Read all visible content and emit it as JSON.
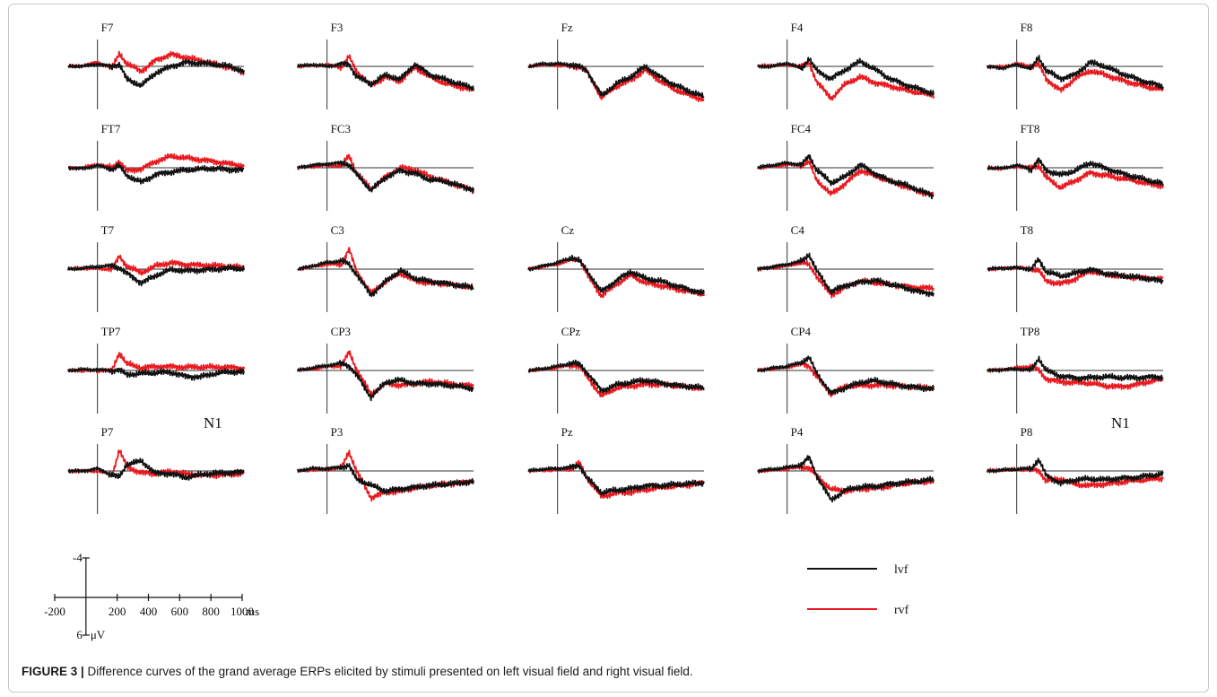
{
  "figure": {
    "caption_label": "FIGURE 3 |",
    "caption_text": " Difference curves of the grand average ERPs elicited by stimuli presented on left visual field and right visual field."
  },
  "chart_data": {
    "type": "line",
    "layout": "electrode grid (5 rows × 5 columns)",
    "x_unit": "ms",
    "y_unit": "μV",
    "xlim": [
      -200,
      1000
    ],
    "ylim": [
      -4,
      6
    ],
    "negative_up": true,
    "grid": false,
    "legend_position": "bottom-right",
    "scale_bar": {
      "x_ticks": [
        "-200",
        "200",
        "400",
        "600",
        "800",
        "1000"
      ],
      "x_unit": "ms",
      "y_top": "-4",
      "y_bottom": "6",
      "y_unit": "μV"
    },
    "annotations": [
      {
        "text": "N1",
        "panel": "TP7"
      },
      {
        "text": "N1",
        "panel": "TP8"
      }
    ],
    "x": [
      -200,
      -100,
      0,
      100,
      150,
      200,
      300,
      400,
      500,
      600,
      700,
      800,
      900,
      1000
    ],
    "series": [
      {
        "name": "lvf",
        "color": "#111111"
      },
      {
        "name": "rvf",
        "color": "#e8191f"
      }
    ],
    "panels": [
      {
        "label": "F7",
        "row": 0,
        "col": 0,
        "lvf": [
          0,
          0,
          -0.3,
          0,
          -0.3,
          1.6,
          2.4,
          0.8,
          0,
          -0.5,
          -0.4,
          -0.2,
          0,
          0.6
        ],
        "rvf": [
          0,
          -0.1,
          -0.5,
          0.2,
          -1.6,
          -0.3,
          0.6,
          -0.8,
          -1.5,
          -1.1,
          -0.7,
          -0.3,
          0.1,
          0.7
        ]
      },
      {
        "label": "F3",
        "row": 0,
        "col": 1,
        "lvf": [
          0,
          -0.2,
          0,
          -0.3,
          -0.3,
          1.2,
          2.2,
          1.1,
          1.6,
          -0.3,
          1.0,
          1.6,
          2.2,
          2.7
        ],
        "rvf": [
          0,
          -0.1,
          -0.2,
          0.1,
          -1.2,
          0.6,
          2.4,
          1.3,
          1.8,
          0.1,
          1.3,
          2.1,
          2.5,
          2.9
        ]
      },
      {
        "label": "Fz",
        "row": 0,
        "col": 2,
        "lvf": [
          0,
          -0.3,
          -0.3,
          -0.2,
          0,
          0.5,
          3.6,
          2.2,
          1.3,
          0,
          1.3,
          2.3,
          3.1,
          3.8
        ],
        "rvf": [
          0,
          -0.2,
          -0.2,
          0,
          0,
          0.6,
          3.9,
          2.5,
          1.7,
          0.4,
          1.8,
          2.9,
          3.6,
          4.1
        ]
      },
      {
        "label": "F4",
        "row": 0,
        "col": 3,
        "lvf": [
          0,
          0,
          -0.4,
          0.3,
          -1.0,
          0.5,
          1.5,
          0.4,
          -0.6,
          0.4,
          1.5,
          2.2,
          2.8,
          3.4
        ],
        "rvf": [
          0,
          -0.1,
          -0.2,
          0,
          -0.5,
          1.8,
          4.0,
          2.2,
          1.3,
          2.0,
          2.4,
          2.9,
          3.3,
          3.6
        ]
      },
      {
        "label": "F8",
        "row": 0,
        "col": 4,
        "lvf": [
          0,
          0.2,
          -0.2,
          0.3,
          -1.1,
          0.5,
          1.5,
          1.0,
          -0.5,
          0,
          0.8,
          1.4,
          2.0,
          2.5
        ],
        "rvf": [
          0,
          0.1,
          -0.3,
          0,
          -0.3,
          1.5,
          3.0,
          1.5,
          0.6,
          1.0,
          1.6,
          2.1,
          2.6,
          2.9
        ]
      },
      {
        "label": "FT7",
        "row": 1,
        "col": 0,
        "lvf": [
          0,
          0.1,
          -0.3,
          0.2,
          -0.2,
          1.0,
          1.8,
          0.8,
          0.5,
          0.3,
          0.2,
          0.1,
          0.2,
          0.3
        ],
        "rvf": [
          0,
          0,
          -0.4,
          0,
          -0.8,
          0.4,
          0.1,
          -0.8,
          -1.4,
          -1.2,
          -1.0,
          -0.8,
          -0.5,
          -0.2
        ]
      },
      {
        "label": "FC3",
        "row": 1,
        "col": 1,
        "lvf": [
          0,
          -0.3,
          -0.5,
          -0.6,
          -0.4,
          0.8,
          2.8,
          1.2,
          0.3,
          0.7,
          1.5,
          1.7,
          2.2,
          2.7
        ],
        "rvf": [
          0,
          -0.2,
          -0.3,
          -0.2,
          -1.5,
          0.6,
          2.6,
          1.1,
          0,
          0.3,
          1.1,
          1.6,
          2.2,
          2.8
        ]
      },
      {
        "label": "FC4",
        "row": 1,
        "col": 3,
        "lvf": [
          0,
          -0.3,
          -0.6,
          -0.4,
          -1.5,
          0.2,
          1.9,
          1.1,
          -0.4,
          0.7,
          1.6,
          2.1,
          2.8,
          3.5
        ],
        "rvf": [
          0,
          -0.2,
          -0.4,
          -0.3,
          -0.7,
          1.5,
          3.3,
          1.9,
          0.3,
          1.0,
          1.7,
          2.3,
          2.9,
          3.4
        ]
      },
      {
        "label": "FT8",
        "row": 1,
        "col": 4,
        "lvf": [
          0,
          0.1,
          -0.3,
          0.2,
          -1.0,
          0.3,
          0.9,
          0.4,
          -0.6,
          0,
          0.6,
          1.1,
          1.6,
          2.0
        ],
        "rvf": [
          0,
          0.1,
          -0.2,
          0,
          -0.3,
          1.2,
          2.5,
          1.6,
          0.6,
          0.9,
          1.3,
          1.6,
          2.0,
          2.2
        ]
      },
      {
        "label": "T7",
        "row": 2,
        "col": 0,
        "lvf": [
          0,
          -0.1,
          -0.3,
          -0.4,
          -0.2,
          0.5,
          1.7,
          0.8,
          0.1,
          0.2,
          0.1,
          0,
          -0.1,
          0
        ],
        "rvf": [
          0,
          -0.1,
          -0.1,
          0,
          -1.6,
          -0.4,
          0.5,
          -0.4,
          -0.8,
          -0.6,
          -0.5,
          -0.4,
          -0.3,
          -0.2
        ]
      },
      {
        "label": "C3",
        "row": 2,
        "col": 1,
        "lvf": [
          0,
          -0.4,
          -0.8,
          -1.0,
          -0.6,
          0.6,
          3.2,
          1.5,
          0.2,
          1.2,
          1.5,
          1.7,
          2.0,
          2.3
        ],
        "rvf": [
          0,
          -0.3,
          -0.6,
          -0.6,
          -2.5,
          0.2,
          3.0,
          1.6,
          0.5,
          1.4,
          1.7,
          1.8,
          2.1,
          2.3
        ]
      },
      {
        "label": "Cz",
        "row": 2,
        "col": 2,
        "lvf": [
          0,
          -0.4,
          -0.8,
          -1.4,
          -1.0,
          0.2,
          2.8,
          1.4,
          0.3,
          1.2,
          1.5,
          2.0,
          2.5,
          3.0
        ],
        "rvf": [
          0,
          -0.3,
          -0.6,
          -1.2,
          -1.3,
          0.6,
          3.3,
          1.9,
          0.8,
          1.7,
          2.0,
          2.4,
          2.8,
          3.1
        ]
      },
      {
        "label": "C4",
        "row": 2,
        "col": 3,
        "lvf": [
          0,
          -0.3,
          -0.6,
          -1.0,
          -1.8,
          0.2,
          2.8,
          2.0,
          1.6,
          1.4,
          1.9,
          2.3,
          2.8,
          3.0
        ],
        "rvf": [
          0,
          -0.2,
          -0.4,
          -0.8,
          -0.5,
          0.8,
          3.2,
          2.2,
          1.5,
          1.7,
          1.9,
          2.1,
          2.3,
          2.4
        ]
      },
      {
        "label": "T8",
        "row": 2,
        "col": 4,
        "lvf": [
          0,
          -0.1,
          -0.2,
          0,
          -1.2,
          0.3,
          0.9,
          0.5,
          0,
          0.5,
          0.8,
          1.0,
          1.2,
          1.5
        ],
        "rvf": [
          0,
          -0.1,
          -0.2,
          0,
          0.2,
          1.5,
          1.8,
          1.2,
          0.2,
          0.7,
          0.9,
          1.0,
          1.1,
          1.2
        ]
      },
      {
        "label": "TP7",
        "row": 3,
        "col": 0,
        "lvf": [
          0,
          -0.1,
          -0.1,
          0,
          -0.1,
          0.5,
          0.4,
          0.3,
          0.2,
          0.7,
          0.8,
          0.4,
          0.2,
          0.2
        ],
        "rvf": [
          0,
          0,
          0,
          0,
          -2.2,
          -0.8,
          -0.3,
          -0.5,
          -0.5,
          -0.4,
          -0.4,
          -0.4,
          -0.4,
          -0.3
        ]
      },
      {
        "label": "CP3",
        "row": 3,
        "col": 1,
        "lvf": [
          0,
          -0.3,
          -0.6,
          -0.9,
          -0.6,
          0.5,
          3.3,
          1.5,
          1.2,
          1.6,
          1.6,
          1.8,
          2.0,
          2.3
        ],
        "rvf": [
          0,
          -0.2,
          -0.5,
          -0.6,
          -2.3,
          -0.2,
          3.0,
          1.6,
          1.8,
          1.6,
          1.4,
          1.6,
          1.8,
          1.9
        ]
      },
      {
        "label": "CPz",
        "row": 3,
        "col": 2,
        "lvf": [
          0,
          -0.2,
          -0.5,
          -0.9,
          -0.8,
          0.2,
          2.5,
          1.8,
          1.5,
          1.2,
          1.5,
          1.8,
          2.0,
          2.2
        ],
        "rvf": [
          0,
          -0.1,
          -0.4,
          -0.7,
          -0.6,
          0.7,
          3.2,
          2.2,
          1.9,
          1.7,
          1.7,
          1.9,
          2.1,
          2.2
        ]
      },
      {
        "label": "CP4",
        "row": 3,
        "col": 3,
        "lvf": [
          0,
          -0.3,
          -0.5,
          -1.0,
          -1.6,
          0.3,
          2.8,
          2.1,
          1.5,
          1.3,
          1.6,
          1.9,
          2.1,
          2.3
        ],
        "rvf": [
          0,
          -0.2,
          -0.4,
          -0.8,
          -0.6,
          0.7,
          2.9,
          2.0,
          1.9,
          1.8,
          1.8,
          2.0,
          2.1,
          2.2
        ]
      },
      {
        "label": "TP8",
        "row": 3,
        "col": 4,
        "lvf": [
          0,
          -0.1,
          -0.2,
          0,
          -1.5,
          0,
          0.7,
          0.9,
          0.9,
          0.8,
          0.9,
          0.9,
          0.8,
          0.8
        ],
        "rvf": [
          0,
          -0.1,
          -0.3,
          -0.5,
          0,
          1.0,
          1.4,
          1.5,
          1.6,
          1.9,
          2.0,
          1.8,
          1.4,
          1.1
        ]
      },
      {
        "label": "P7",
        "row": 4,
        "col": 0,
        "lvf": [
          0,
          0,
          -0.3,
          0.5,
          0.8,
          -0.8,
          -1.2,
          0.3,
          0.3,
          0.8,
          0.5,
          0.3,
          0.2,
          0.1
        ],
        "rvf": [
          0,
          0,
          0,
          0.5,
          -2.6,
          -0.5,
          0.2,
          0.3,
          0.1,
          0.4,
          0.5,
          0.5,
          0.4,
          0.3
        ]
      },
      {
        "label": "P3",
        "row": 4,
        "col": 1,
        "lvf": [
          0,
          -0.3,
          -0.3,
          -0.5,
          -0.7,
          1.0,
          1.8,
          2.5,
          2.2,
          2.0,
          1.8,
          1.7,
          1.5,
          1.3
        ],
        "rvf": [
          0,
          -0.2,
          -0.2,
          -0.4,
          -2.4,
          0,
          3.3,
          2.6,
          2.5,
          2.1,
          1.9,
          1.6,
          1.5,
          1.2
        ]
      },
      {
        "label": "Pz",
        "row": 4,
        "col": 2,
        "lvf": [
          0,
          -0.2,
          -0.3,
          -0.5,
          -0.7,
          0.8,
          2.7,
          2.4,
          2.2,
          1.8,
          1.8,
          1.7,
          1.6,
          1.5
        ],
        "rvf": [
          0,
          -0.1,
          -0.2,
          -0.3,
          -1.0,
          0.9,
          3.2,
          2.7,
          2.6,
          2.3,
          2.1,
          1.9,
          1.7,
          1.4
        ]
      },
      {
        "label": "P4",
        "row": 4,
        "col": 3,
        "lvf": [
          0,
          -0.2,
          -0.4,
          -0.8,
          -1.7,
          0.5,
          3.6,
          2.4,
          2.0,
          1.9,
          1.6,
          1.4,
          1.3,
          1.1
        ],
        "rvf": [
          0,
          -0.1,
          -0.3,
          -0.5,
          -0.4,
          0.6,
          2.3,
          2.5,
          2.2,
          2.1,
          1.9,
          1.6,
          1.4,
          1.2
        ]
      },
      {
        "label": "P8",
        "row": 4,
        "col": 4,
        "lvf": [
          0,
          -0.1,
          -0.2,
          -0.3,
          -1.4,
          0.5,
          1.5,
          1.1,
          1.0,
          1.1,
          0.9,
          0.8,
          0.6,
          0.4
        ],
        "rvf": [
          0,
          -0.1,
          -0.2,
          -0.2,
          -0.1,
          1.2,
          1.0,
          1.7,
          1.8,
          1.6,
          1.4,
          1.2,
          1.1,
          0.9
        ]
      }
    ]
  }
}
